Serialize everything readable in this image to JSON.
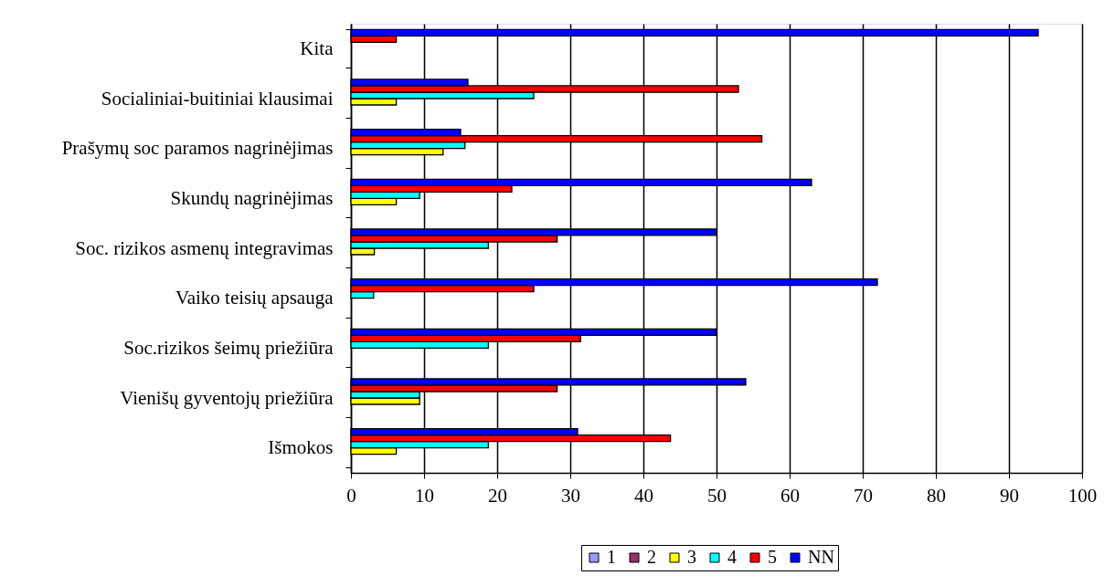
{
  "chart_data": {
    "type": "bar",
    "orientation": "horizontal",
    "categories": [
      "Kita",
      "Socialiniai-buitiniai klausimai",
      "Prašymų soc paramos  nagrinėjimas",
      "Skundų nagrinėjimas",
      "Soc. rizikos asmenų integravimas",
      "Vaiko teisių apsauga",
      "Soc.rizikos šeimų priežiūra",
      "Vienišų gyventojų priežiūra",
      "Išmokos"
    ],
    "series": [
      {
        "name": "1",
        "color": "#9999ff",
        "values": [
          null,
          null,
          null,
          null,
          null,
          null,
          null,
          null,
          null
        ]
      },
      {
        "name": "2",
        "color": "#993366",
        "values": [
          null,
          null,
          null,
          null,
          null,
          null,
          null,
          null,
          null
        ]
      },
      {
        "name": "3",
        "color": "#ffff00",
        "values": [
          null,
          6.2,
          12.6,
          6.2,
          3.2,
          null,
          null,
          9.4,
          6.2
        ]
      },
      {
        "name": "4",
        "color": "#00ffff",
        "values": [
          null,
          25,
          15.6,
          9.4,
          18.8,
          3.1,
          18.8,
          9.4,
          18.8
        ]
      },
      {
        "name": "5",
        "color": "#ff0000",
        "values": [
          6.2,
          53,
          56.2,
          22,
          28.2,
          25,
          31.4,
          28.2,
          43.7
        ]
      },
      {
        "name": "NN",
        "color": "#0000ff",
        "values": [
          94,
          16,
          15,
          63,
          50,
          72,
          50,
          54,
          31
        ]
      }
    ],
    "xlim": [
      0,
      100
    ],
    "xticks": [
      0,
      10,
      20,
      30,
      40,
      50,
      60,
      70,
      80,
      90,
      100
    ],
    "grid": "x",
    "legend": "bottom"
  }
}
